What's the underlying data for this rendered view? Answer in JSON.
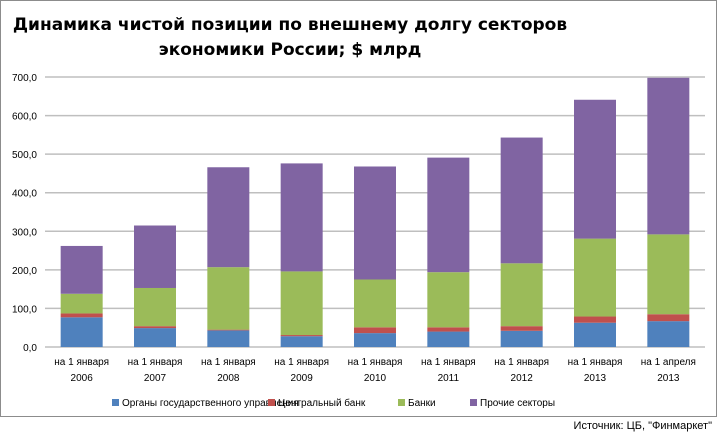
{
  "chart_data": {
    "type": "bar",
    "stacked": true,
    "title": [
      "Динамика чистой позиции по внешнему долгу секторов",
      "экономики России; $ млрд"
    ],
    "xlabel": "",
    "ylabel": "",
    "ylim": [
      0,
      700
    ],
    "yticks": [
      "0,0",
      "100,0",
      "200,0",
      "300,0",
      "400,0",
      "500,0",
      "600,0",
      "700,0"
    ],
    "ytick_values": [
      0,
      100,
      200,
      300,
      400,
      500,
      600,
      700
    ],
    "grid": true,
    "legend_position": "bottom",
    "categories": [
      [
        "на 1 января",
        "2006"
      ],
      [
        "на 1 января",
        "2007"
      ],
      [
        "на 1 января",
        "2008"
      ],
      [
        "на 1 января",
        "2009"
      ],
      [
        "на 1 января",
        "2010"
      ],
      [
        "на 1 января",
        "2011"
      ],
      [
        "на 1 января",
        "2012"
      ],
      [
        "на 1 января",
        "2013"
      ],
      [
        "на 1 апреля",
        "2013"
      ]
    ],
    "series": [
      {
        "name": "Органы государственного управления",
        "color": "#4f81bd",
        "values": [
          77,
          49,
          43,
          28,
          36,
          40,
          42,
          63,
          67
        ]
      },
      {
        "name": "Центральный банк",
        "color": "#c0504d",
        "values": [
          10,
          5,
          2,
          3,
          15,
          11,
          12,
          16,
          18
        ]
      },
      {
        "name": "Банки",
        "color": "#9bbb59",
        "values": [
          51,
          99,
          162,
          165,
          124,
          143,
          163,
          202,
          207
        ]
      },
      {
        "name": "Прочие секторы",
        "color": "#8064a2",
        "values": [
          124,
          162,
          259,
          280,
          293,
          297,
          326,
          360,
          406
        ]
      }
    ]
  },
  "source": "Источник: ЦБ, \"Финмаркет\""
}
